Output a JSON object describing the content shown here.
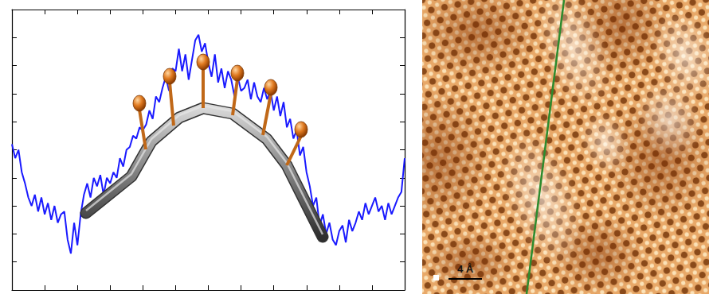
{
  "chart_data": {
    "type": "line",
    "color": "#1a1aff",
    "marker": "none",
    "grid": false,
    "tick_labels": false,
    "xlim": [
      0,
      12
    ],
    "xticks": [
      0,
      1,
      2,
      3,
      4,
      5,
      6,
      7,
      8,
      9,
      10,
      11,
      12
    ],
    "ylim": [
      0,
      10
    ],
    "yticks": [
      0,
      1,
      2,
      3,
      4,
      5,
      6,
      7,
      8,
      9,
      10
    ],
    "x": [
      0,
      0.1,
      0.2,
      0.3,
      0.4,
      0.5,
      0.6,
      0.7,
      0.8,
      0.9,
      1,
      1.1,
      1.2,
      1.3,
      1.4,
      1.5,
      1.6,
      1.7,
      1.8,
      1.9,
      2,
      2.1,
      2.2,
      2.3,
      2.4,
      2.5,
      2.6,
      2.7,
      2.8,
      2.9,
      3,
      3.1,
      3.2,
      3.3,
      3.4,
      3.5,
      3.6,
      3.7,
      3.8,
      3.9,
      4,
      4.1,
      4.2,
      4.3,
      4.4,
      4.5,
      4.6,
      4.7,
      4.8,
      4.9,
      5,
      5.1,
      5.2,
      5.3,
      5.4,
      5.5,
      5.6,
      5.7,
      5.8,
      5.9,
      6,
      6.1,
      6.2,
      6.3,
      6.4,
      6.5,
      6.6,
      6.7,
      6.8,
      6.9,
      7,
      7.1,
      7.2,
      7.3,
      7.4,
      7.5,
      7.6,
      7.7,
      7.8,
      7.9,
      8,
      8.1,
      8.2,
      8.3,
      8.4,
      8.5,
      8.6,
      8.7,
      8.8,
      8.9,
      9,
      9.1,
      9.2,
      9.3,
      9.4,
      9.5,
      9.6,
      9.7,
      9.8,
      9.9,
      10,
      10.1,
      10.2,
      10.3,
      10.4,
      10.5,
      10.6,
      10.7,
      10.8,
      10.9,
      11,
      11.1,
      11.2,
      11.3,
      11.4,
      11.5,
      11.6,
      11.7,
      11.8,
      11.9,
      12
    ],
    "values": [
      5.2,
      4.7,
      5.0,
      4.2,
      3.8,
      3.3,
      3.0,
      3.4,
      2.8,
      3.3,
      2.7,
      3.1,
      2.5,
      3.0,
      2.4,
      2.7,
      2.8,
      1.8,
      1.3,
      2.4,
      1.6,
      2.7,
      3.4,
      3.8,
      3.3,
      4.0,
      3.7,
      4.1,
      3.4,
      4.0,
      3.8,
      4.2,
      4.0,
      4.7,
      4.4,
      5.0,
      5.1,
      5.5,
      5.4,
      5.8,
      5.7,
      5.9,
      6.4,
      6.1,
      6.9,
      6.7,
      7.2,
      7.6,
      7.1,
      7.9,
      7.8,
      8.6,
      7.8,
      8.4,
      7.5,
      8.2,
      8.9,
      9.1,
      8.5,
      8.8,
      8.1,
      7.6,
      8.4,
      7.4,
      7.9,
      7.2,
      7.8,
      7.5,
      6.9,
      7.6,
      7.1,
      7.2,
      7.5,
      6.8,
      7.4,
      6.9,
      6.7,
      7.2,
      6.8,
      7.1,
      6.4,
      6.9,
      6.2,
      6.7,
      5.8,
      6.1,
      5.4,
      5.7,
      4.8,
      5.1,
      4.2,
      3.7,
      3.0,
      3.3,
      2.3,
      2.7,
      2.0,
      2.4,
      1.8,
      1.6,
      2.1,
      2.3,
      1.7,
      2.5,
      2.1,
      2.4,
      2.8,
      2.5,
      3.1,
      2.7,
      3.0,
      3.3,
      2.8,
      3.0,
      2.5,
      3.1,
      2.7,
      3.0,
      3.3,
      3.5,
      4.7
    ]
  },
  "image": {
    "scale_bar": "4 Å"
  }
}
